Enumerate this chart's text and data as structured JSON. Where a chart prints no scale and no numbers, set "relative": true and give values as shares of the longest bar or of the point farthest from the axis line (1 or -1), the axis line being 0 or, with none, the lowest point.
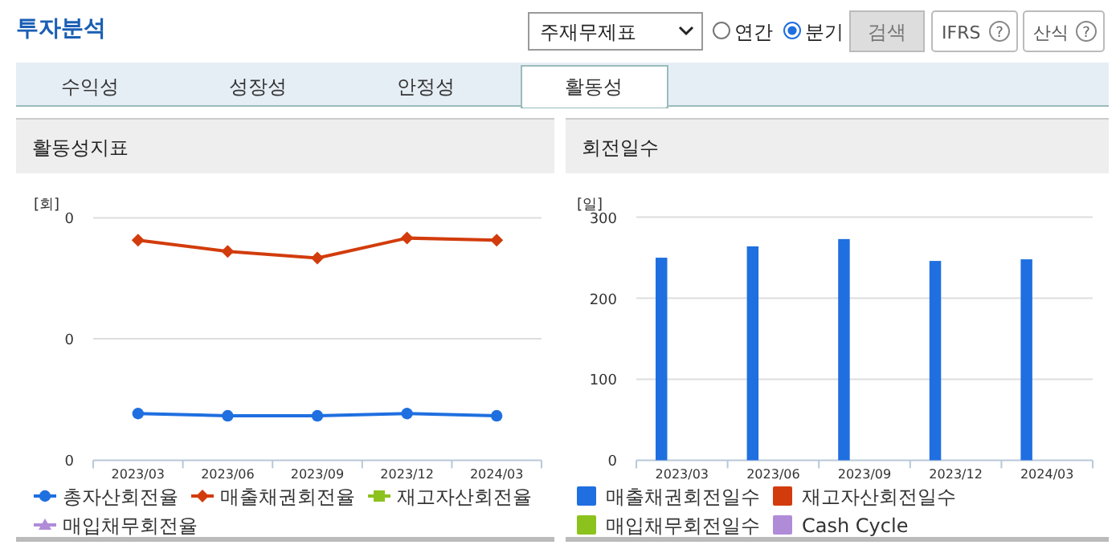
{
  "chart_data": [
    {
      "type": "other",
      "title": "투자분석",
      "annotations": [
        "주재무제표",
        "연간",
        "분기",
        "검색",
        "IFRS",
        "산식",
        "수익성",
        "성장성",
        "안정성",
        "활동성",
        "?",
        "?"
      ]
    },
    {
      "type": "line",
      "title": "활동성지표",
      "ylabel": "[회]",
      "relative": true,
      "legend": "bottom",
      "annotations": [
        "0",
        "0",
        "0"
      ],
      "ref_lines": [
        {
          "axis": "y",
          "value": 0.547,
          "color": "#dddddd"
        },
        {
          "axis": "y",
          "value": 1.091,
          "color": "#dddddd"
        }
      ],
      "categories": [
        "2023/03",
        "2023/06",
        "2023/09",
        "2023/12",
        "2024/03"
      ],
      "series": [
        {
          "name": "총자산회전율",
          "color": "#1f6fe0",
          "marker": "circle",
          "values": [
            0.21,
            0.2,
            0.2,
            0.21,
            0.2
          ]
        },
        {
          "name": "매출채권회전율",
          "color": "#d23c0c",
          "marker": "diamond",
          "values": [
            0.99,
            0.94,
            0.91,
            1,
            0.99
          ]
        },
        {
          "name": "재고자산회전율",
          "color": "#8cc21e",
          "marker": "square",
          "values": [
            null,
            null,
            null,
            null,
            null
          ]
        },
        {
          "name": "매입채무회전율",
          "color": "#b08cd8",
          "marker": "triangle",
          "values": [
            null,
            null,
            null,
            null,
            null
          ]
        }
      ]
    },
    {
      "type": "bar",
      "title": "회전일수",
      "ylabel": "[일]",
      "grid": "y",
      "legend": "bottom",
      "categories": [
        "2023/03",
        "2023/06",
        "2023/09",
        "2023/12",
        "2024/03"
      ],
      "ylim": [
        0,
        300
      ],
      "yticks": [
        0,
        100,
        200,
        300
      ],
      "series": [
        {
          "name": "매출채권회전일수",
          "color": "#1f6fe0",
          "values": [
            250,
            264,
            273,
            246,
            248
          ]
        },
        {
          "name": "재고자산회전일수",
          "color": "#d23c0c",
          "values": [
            null,
            null,
            null,
            null,
            null
          ]
        },
        {
          "name": "매입채무회전일수",
          "color": "#8cc21e",
          "values": [
            null,
            null,
            null,
            null,
            null
          ]
        },
        {
          "name": "Cash Cycle",
          "color": "#b08cd8",
          "values": [
            null,
            null,
            null,
            null,
            null
          ]
        }
      ]
    }
  ]
}
